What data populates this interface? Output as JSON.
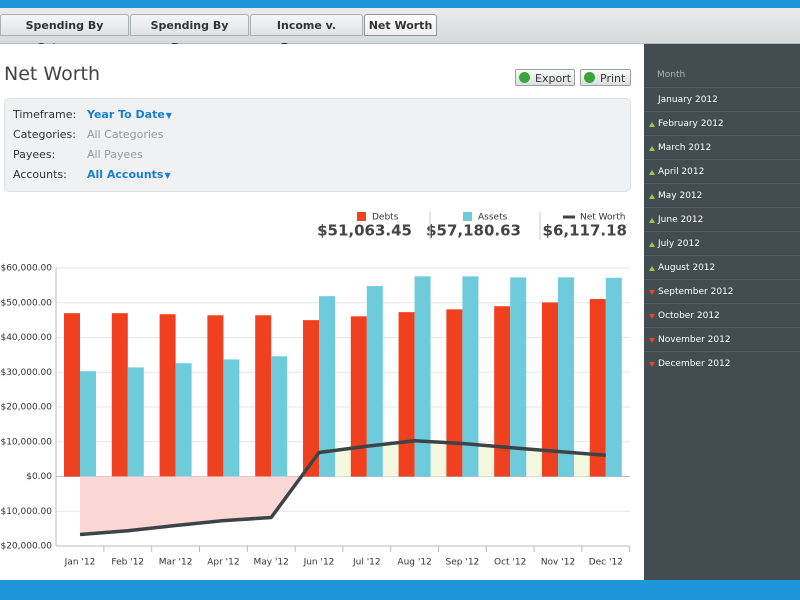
{
  "tabs": [
    {
      "label": "Spending By Category",
      "active": false
    },
    {
      "label": "Spending By Payee",
      "active": false
    },
    {
      "label": "Income v. Expense",
      "active": false
    },
    {
      "label": "Net Worth",
      "active": true
    }
  ],
  "header": {
    "title": "Net Worth",
    "buttons": [
      "Export",
      "Print"
    ]
  },
  "filters": [
    {
      "label": "Timeframe:",
      "value": "Year To Date",
      "link": true
    },
    {
      "label": "Categories:",
      "value": "All Categories",
      "link": false
    },
    {
      "label": "Payees:",
      "value": "All Payees",
      "link": false
    },
    {
      "label": "Accounts:",
      "value": "All Accounts",
      "link": true
    }
  ],
  "sidebar": {
    "header": "Month",
    "items": [
      {
        "label": "January 2012"
      },
      {
        "label": "February 2012",
        "trend": "up"
      },
      {
        "label": "March 2012",
        "trend": "up"
      },
      {
        "label": "April 2012",
        "trend": "up"
      },
      {
        "label": "May 2012",
        "trend": "up"
      },
      {
        "label": "June 2012",
        "trend": "up"
      },
      {
        "label": "July 2012",
        "trend": "up"
      },
      {
        "label": "August 2012",
        "trend": "up"
      },
      {
        "label": "September 2012",
        "trend": "down"
      },
      {
        "label": "October 2012",
        "trend": "down"
      },
      {
        "label": "November 2012",
        "trend": "down"
      },
      {
        "label": "December 2012",
        "trend": "down"
      }
    ]
  },
  "chart_data": {
    "type": "bar",
    "categories": [
      "Jan '12",
      "Feb '12",
      "Mar '12",
      "Apr '12",
      "May '12",
      "Jun '12",
      "Jul '12",
      "Aug '12",
      "Sep '12",
      "Oct '12",
      "Nov '12",
      "Dec '12"
    ],
    "series": [
      {
        "name": "Debts",
        "type": "bar",
        "color": "#f0401f",
        "total": "$51,063.45",
        "values": [
          47000,
          47000,
          46700,
          46400,
          46400,
          45000,
          46100,
          47300,
          48100,
          49000,
          50100,
          51063.45
        ]
      },
      {
        "name": "Assets",
        "type": "bar",
        "color": "#6dcbdc",
        "total": "$57,180.63",
        "values": [
          30300,
          31400,
          32600,
          33700,
          34600,
          51900,
          54800,
          57600,
          57600,
          57300,
          57300,
          57180.63
        ]
      },
      {
        "name": "Net Worth",
        "type": "line",
        "color": "#3d4448",
        "total": "$6,117.18",
        "values": [
          -16700,
          -15600,
          -14100,
          -12700,
          -11800,
          6900,
          8700,
          10300,
          9500,
          8300,
          7200,
          6117.18
        ]
      }
    ],
    "ylim": [
      -20000,
      60000
    ],
    "yticks": [
      {
        "value": -20000,
        "label": "-$20,000.00"
      },
      {
        "value": -10000,
        "label": "-$10,000.00"
      },
      {
        "value": 0,
        "label": "$0.00"
      },
      {
        "value": 10000,
        "label": "$10,000.00"
      },
      {
        "value": 20000,
        "label": "$20,000.00"
      },
      {
        "value": 30000,
        "label": "$30,000.00"
      },
      {
        "value": 40000,
        "label": "$40,000.00"
      },
      {
        "value": 50000,
        "label": "$50,000.00"
      },
      {
        "value": 60000,
        "label": "$60,000.00"
      }
    ],
    "grid": true
  }
}
